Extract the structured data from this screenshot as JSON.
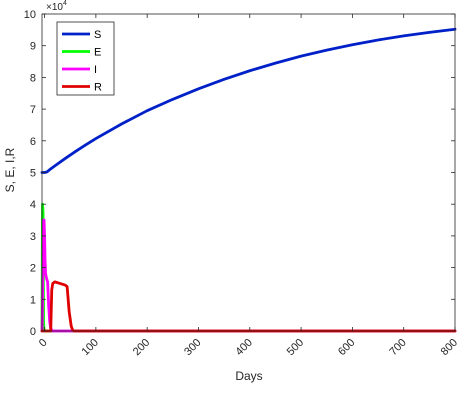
{
  "chart_data": {
    "type": "line",
    "title": "",
    "xlabel": "Days",
    "ylabel": "S, E, I,R",
    "xlim": [
      -5,
      800
    ],
    "ylim": [
      0,
      100000
    ],
    "grid": false,
    "legend_position": "top-left",
    "y_exponent_label": {
      "base": "×10",
      "exponent": "4"
    },
    "x_ticks": [
      0,
      100,
      200,
      300,
      400,
      500,
      600,
      700,
      800
    ],
    "x_tick_labels": [
      "0",
      "100",
      "200",
      "300",
      "400",
      "500",
      "600",
      "700",
      "800"
    ],
    "y_ticks": [
      0,
      10000,
      20000,
      30000,
      40000,
      50000,
      60000,
      70000,
      80000,
      90000,
      100000
    ],
    "y_tick_labels": [
      "0",
      "1",
      "2",
      "3",
      "4",
      "5",
      "6",
      "7",
      "8",
      "9",
      "10"
    ],
    "series": [
      {
        "name": "S",
        "color": "#0020c8",
        "points": [
          [
            -5,
            50000
          ],
          [
            0,
            50000
          ],
          [
            5,
            50200
          ],
          [
            10,
            50900
          ],
          [
            20,
            52100
          ],
          [
            40,
            54400
          ],
          [
            60,
            56600
          ],
          [
            80,
            58700
          ],
          [
            100,
            60700
          ],
          [
            150,
            65300
          ],
          [
            200,
            69500
          ],
          [
            250,
            73100
          ],
          [
            300,
            76400
          ],
          [
            350,
            79400
          ],
          [
            400,
            82100
          ],
          [
            450,
            84500
          ],
          [
            500,
            86700
          ],
          [
            550,
            88600
          ],
          [
            600,
            90300
          ],
          [
            650,
            91800
          ],
          [
            700,
            93100
          ],
          [
            750,
            94200
          ],
          [
            800,
            95200
          ]
        ]
      },
      {
        "name": "E",
        "color": "#00ff00",
        "points": [
          [
            -5,
            0
          ],
          [
            -4,
            40000
          ],
          [
            -3,
            37500
          ],
          [
            -2,
            3000
          ],
          [
            -1,
            300
          ],
          [
            0,
            0
          ],
          [
            800,
            0
          ]
        ]
      },
      {
        "name": "I",
        "color": "#ff00ff",
        "points": [
          [
            -5,
            0
          ],
          [
            -4.5,
            3000
          ],
          [
            -4,
            10000
          ],
          [
            -3,
            24000
          ],
          [
            -2,
            35000
          ],
          [
            -1,
            35000
          ],
          [
            0,
            30000
          ],
          [
            1,
            22000
          ],
          [
            2,
            18000
          ],
          [
            4,
            16500
          ],
          [
            6,
            15500
          ],
          [
            8,
            8000
          ],
          [
            10,
            3000
          ],
          [
            12,
            800
          ],
          [
            15,
            0
          ],
          [
            800,
            0
          ]
        ]
      },
      {
        "name": "R",
        "color": "#e00000",
        "points": [
          [
            -5,
            0
          ],
          [
            12,
            0
          ],
          [
            14,
            13000
          ],
          [
            16,
            15000
          ],
          [
            20,
            15500
          ],
          [
            30,
            15000
          ],
          [
            40,
            14500
          ],
          [
            44,
            14000
          ],
          [
            48,
            6000
          ],
          [
            52,
            1500
          ],
          [
            55,
            200
          ],
          [
            58,
            0
          ],
          [
            800,
            0
          ]
        ]
      }
    ]
  }
}
